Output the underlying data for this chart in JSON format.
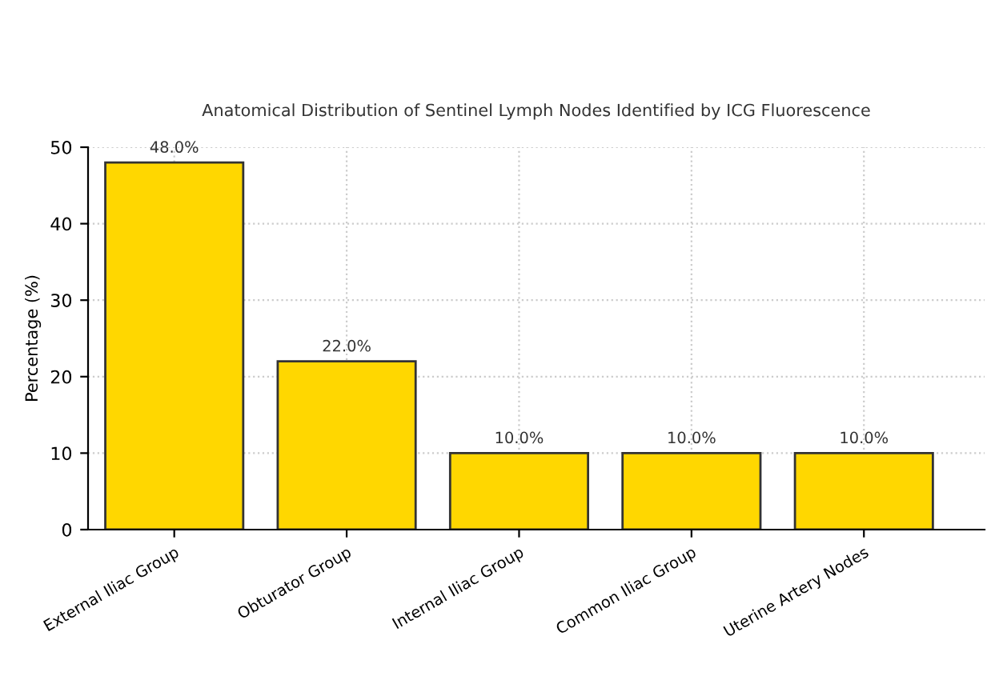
{
  "chart_data": {
    "type": "bar",
    "title": "Anatomical Distribution of Sentinel Lymph Nodes Identified by ICG Fluorescence",
    "ylabel": "Percentage (%)",
    "categories": [
      "External Iliac Group",
      "Obturator Group",
      "Internal Iliac Group",
      "Common Iliac Group",
      "Uterine Artery Nodes"
    ],
    "values": [
      48.0,
      22.0,
      10.0,
      10.0,
      10.0
    ],
    "value_labels": [
      "48.0%",
      "22.0%",
      "10.0%",
      "10.0%",
      "10.0%"
    ],
    "color": "#ffd700",
    "ylim": [
      0,
      50
    ],
    "yticks": [
      0,
      10,
      20,
      30,
      40,
      50
    ],
    "grid": true,
    "legend": false
  }
}
